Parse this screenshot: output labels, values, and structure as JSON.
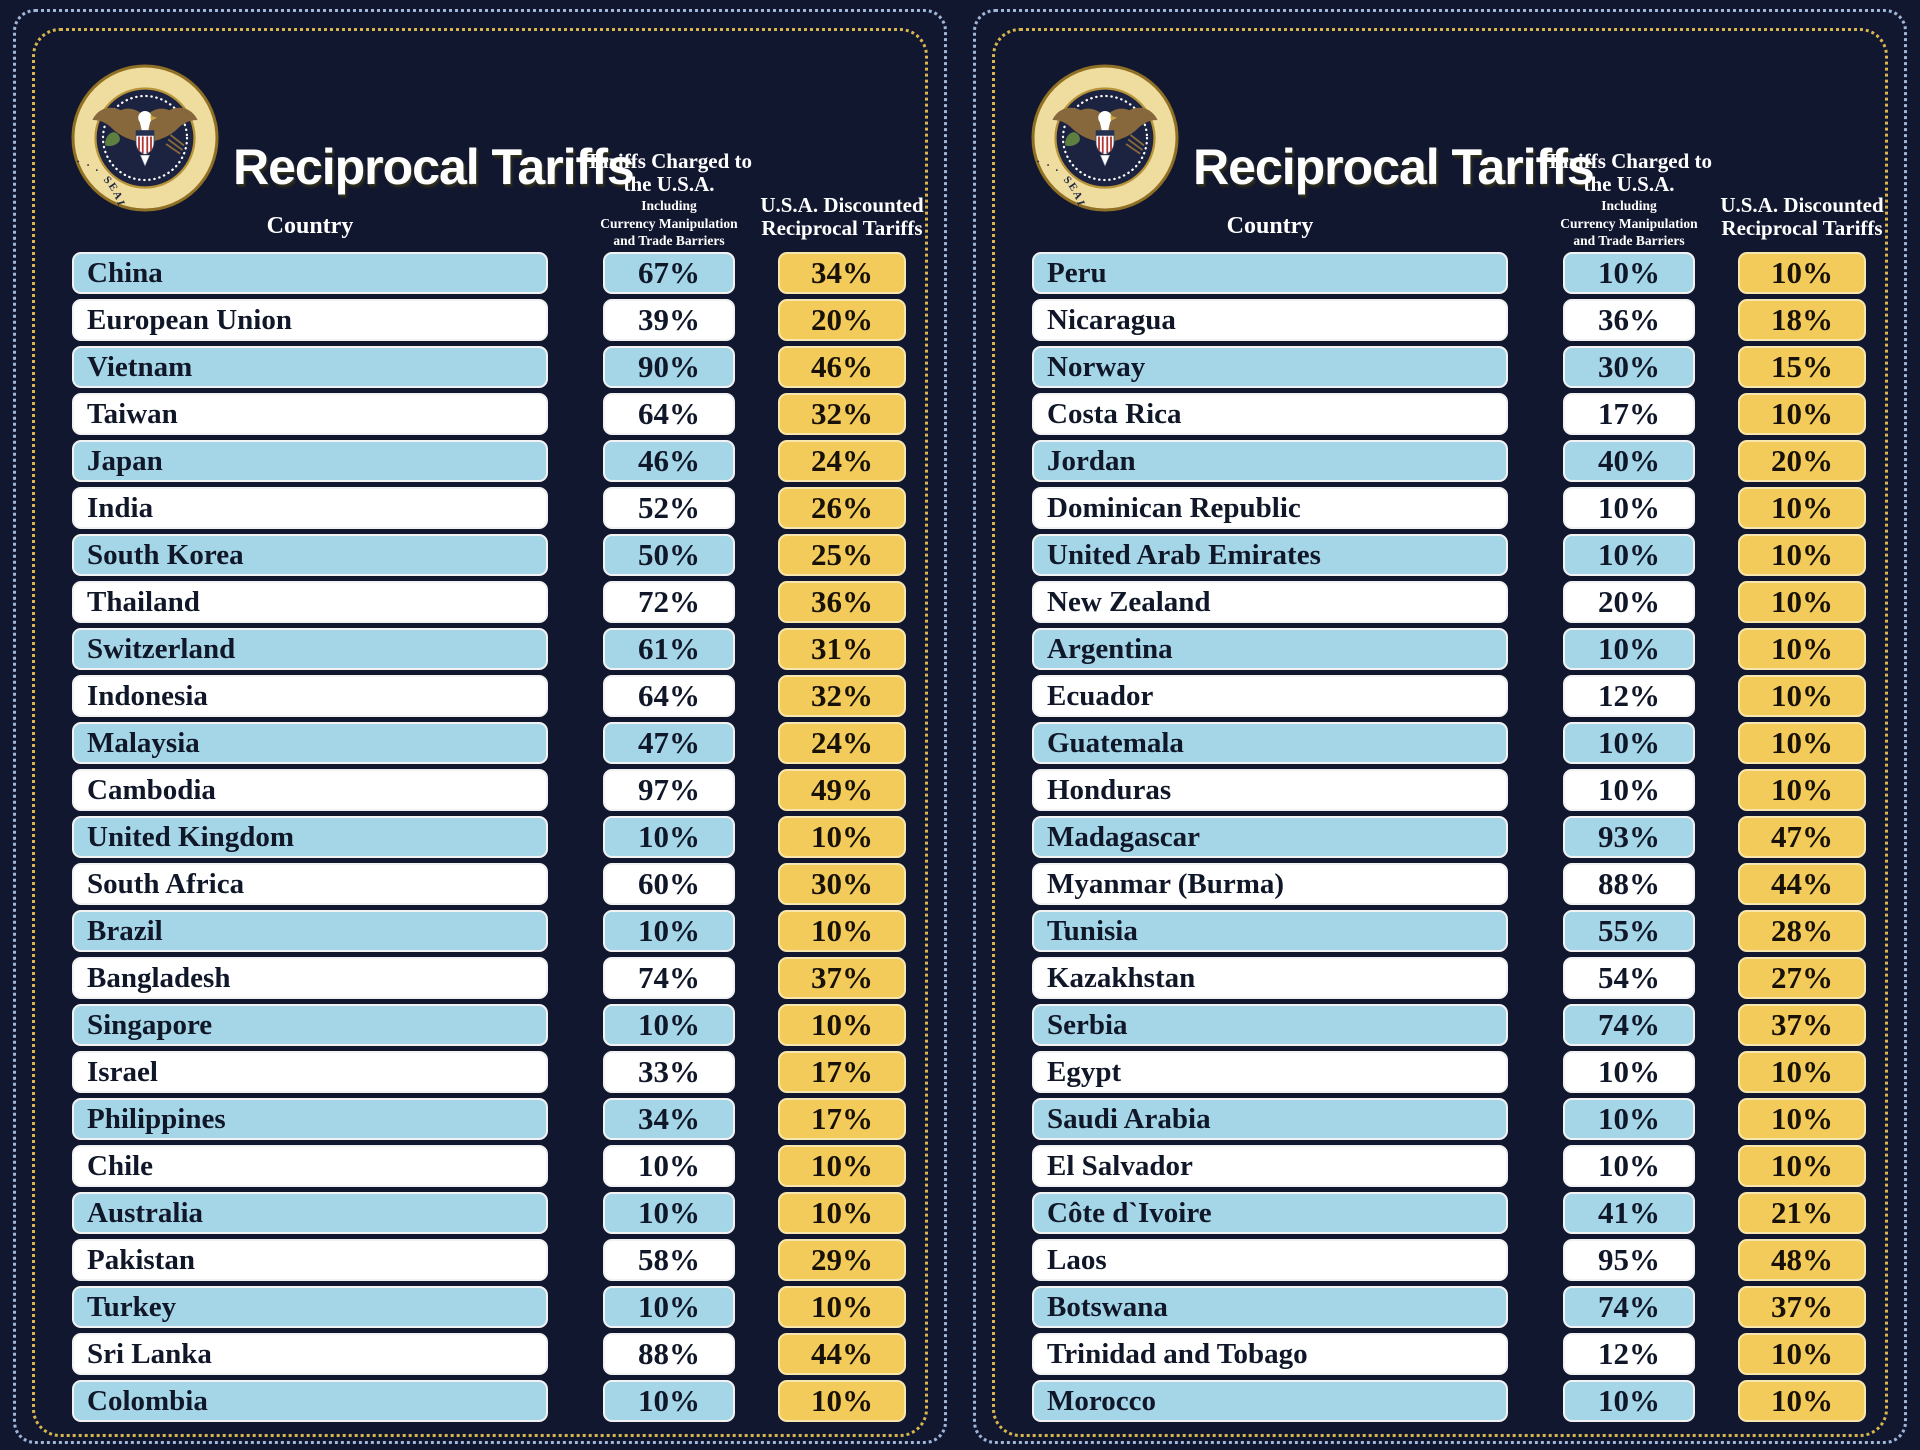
{
  "headers": {
    "title": "Reciprocal Tariffs",
    "country": "Country",
    "charged_main": "Tariffs Charged to the U.S.A.",
    "charged_sub_lines": [
      "Including",
      "Currency Manipulation",
      "and Trade Barriers"
    ],
    "discounted": "U.S.A. Discounted Reciprocal Tariffs"
  },
  "seal": {
    "ring_text": "SEAL OF THE PRESIDENT OF THE UNITED STATES · · ·"
  },
  "colors": {
    "background": "#121730",
    "row_blue": "#a5d6e7",
    "row_white": "#ffffff",
    "gold": "#f3cb5b",
    "border_gold_dotted": "#d8b64e",
    "border_blue_dotted": "#9fb6d9",
    "header_text": "#ffffff",
    "bar_text": "#101729"
  },
  "chart_data": [
    {
      "type": "table",
      "title": "Reciprocal Tariffs",
      "columns": [
        "Country",
        "Tariffs Charged to the U.S.A. Including Currency Manipulation and Trade Barriers",
        "U.S.A. Discounted Reciprocal Tariffs"
      ],
      "rows": [
        [
          "China",
          "67%",
          "34%"
        ],
        [
          "European Union",
          "39%",
          "20%"
        ],
        [
          "Vietnam",
          "90%",
          "46%"
        ],
        [
          "Taiwan",
          "64%",
          "32%"
        ],
        [
          "Japan",
          "46%",
          "24%"
        ],
        [
          "India",
          "52%",
          "26%"
        ],
        [
          "South Korea",
          "50%",
          "25%"
        ],
        [
          "Thailand",
          "72%",
          "36%"
        ],
        [
          "Switzerland",
          "61%",
          "31%"
        ],
        [
          "Indonesia",
          "64%",
          "32%"
        ],
        [
          "Malaysia",
          "47%",
          "24%"
        ],
        [
          "Cambodia",
          "97%",
          "49%"
        ],
        [
          "United Kingdom",
          "10%",
          "10%"
        ],
        [
          "South Africa",
          "60%",
          "30%"
        ],
        [
          "Brazil",
          "10%",
          "10%"
        ],
        [
          "Bangladesh",
          "74%",
          "37%"
        ],
        [
          "Singapore",
          "10%",
          "10%"
        ],
        [
          "Israel",
          "33%",
          "17%"
        ],
        [
          "Philippines",
          "34%",
          "17%"
        ],
        [
          "Chile",
          "10%",
          "10%"
        ],
        [
          "Australia",
          "10%",
          "10%"
        ],
        [
          "Pakistan",
          "58%",
          "29%"
        ],
        [
          "Turkey",
          "10%",
          "10%"
        ],
        [
          "Sri Lanka",
          "88%",
          "44%"
        ],
        [
          "Colombia",
          "10%",
          "10%"
        ]
      ]
    },
    {
      "type": "table",
      "title": "Reciprocal Tariffs",
      "columns": [
        "Country",
        "Tariffs Charged to the U.S.A. Including Currency Manipulation and Trade Barriers",
        "U.S.A. Discounted Reciprocal Tariffs"
      ],
      "rows": [
        [
          "Peru",
          "10%",
          "10%"
        ],
        [
          "Nicaragua",
          "36%",
          "18%"
        ],
        [
          "Norway",
          "30%",
          "15%"
        ],
        [
          "Costa Rica",
          "17%",
          "10%"
        ],
        [
          "Jordan",
          "40%",
          "20%"
        ],
        [
          "Dominican Republic",
          "10%",
          "10%"
        ],
        [
          "United Arab Emirates",
          "10%",
          "10%"
        ],
        [
          "New Zealand",
          "20%",
          "10%"
        ],
        [
          "Argentina",
          "10%",
          "10%"
        ],
        [
          "Ecuador",
          "12%",
          "10%"
        ],
        [
          "Guatemala",
          "10%",
          "10%"
        ],
        [
          "Honduras",
          "10%",
          "10%"
        ],
        [
          "Madagascar",
          "93%",
          "47%"
        ],
        [
          "Myanmar (Burma)",
          "88%",
          "44%"
        ],
        [
          "Tunisia",
          "55%",
          "28%"
        ],
        [
          "Kazakhstan",
          "54%",
          "27%"
        ],
        [
          "Serbia",
          "74%",
          "37%"
        ],
        [
          "Egypt",
          "10%",
          "10%"
        ],
        [
          "Saudi Arabia",
          "10%",
          "10%"
        ],
        [
          "El Salvador",
          "10%",
          "10%"
        ],
        [
          "Côte d`Ivoire",
          "41%",
          "21%"
        ],
        [
          "Laos",
          "95%",
          "48%"
        ],
        [
          "Botswana",
          "74%",
          "37%"
        ],
        [
          "Trinidad and Tobago",
          "12%",
          "10%"
        ],
        [
          "Morocco",
          "10%",
          "10%"
        ]
      ]
    }
  ]
}
